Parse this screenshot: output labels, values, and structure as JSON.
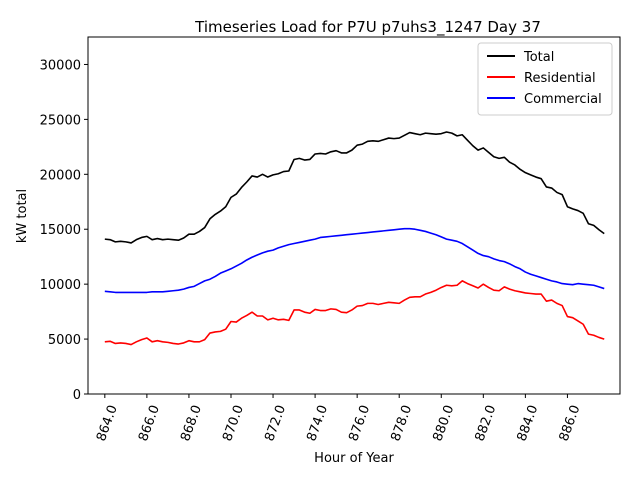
{
  "chart_data": {
    "type": "line",
    "title": "Timeseries Load for P7U p7uhs3_1247  Day 37",
    "xlabel": "Hour of Year",
    "ylabel": "kW total",
    "xlim": [
      863.2,
      888.5
    ],
    "ylim": [
      0,
      32500
    ],
    "x_ticks": [
      864,
      866,
      868,
      870,
      872,
      874,
      876,
      878,
      880,
      882,
      884,
      886
    ],
    "x_tick_labels": [
      "864.0",
      "866.0",
      "868.0",
      "870.0",
      "872.0",
      "874.0",
      "876.0",
      "878.0",
      "880.0",
      "882.0",
      "884.0",
      "886.0"
    ],
    "y_ticks": [
      0,
      5000,
      10000,
      15000,
      20000,
      25000,
      30000
    ],
    "y_tick_labels": [
      "0",
      "5000",
      "10000",
      "15000",
      "20000",
      "25000",
      "30000"
    ],
    "legend_position": "top-right",
    "x_start": 864.0,
    "x_step": 0.25,
    "series": [
      {
        "name": "Total",
        "color": "#000000",
        "values": [
          14100,
          14050,
          13850,
          13900,
          13850,
          13750,
          14050,
          14250,
          14350,
          14050,
          14150,
          14050,
          14100,
          14050,
          14000,
          14200,
          14550,
          14550,
          14800,
          15150,
          15950,
          16350,
          16650,
          17050,
          17900,
          18200,
          18800,
          19300,
          19850,
          19750,
          20000,
          19750,
          19950,
          20050,
          20250,
          20300,
          21350,
          21450,
          21300,
          21350,
          21850,
          21900,
          21850,
          22050,
          22150,
          21950,
          21950,
          22200,
          22650,
          22750,
          23000,
          23050,
          23000,
          23150,
          23300,
          23250,
          23300,
          23550,
          23800,
          23700,
          23600,
          23750,
          23700,
          23650,
          23700,
          23850,
          23750,
          23500,
          23600,
          23100,
          22600,
          22200,
          22400,
          22000,
          21600,
          21450,
          21550,
          21100,
          20850,
          20450,
          20150,
          19950,
          19750,
          19600,
          18850,
          18750,
          18350,
          18150,
          17050,
          16850,
          16700,
          16450,
          15500,
          15350,
          14950,
          14600
        ]
      },
      {
        "name": "Residential",
        "color": "#ff0000",
        "values": [
          4750,
          4800,
          4600,
          4650,
          4600,
          4500,
          4750,
          4950,
          5100,
          4750,
          4850,
          4750,
          4700,
          4600,
          4550,
          4650,
          4850,
          4750,
          4750,
          4950,
          5550,
          5650,
          5700,
          5900,
          6600,
          6550,
          6900,
          7150,
          7450,
          7100,
          7100,
          6750,
          6900,
          6750,
          6800,
          6700,
          7650,
          7650,
          7450,
          7350,
          7700,
          7600,
          7600,
          7750,
          7700,
          7450,
          7400,
          7650,
          8000,
          8050,
          8250,
          8250,
          8150,
          8250,
          8350,
          8300,
          8250,
          8550,
          8800,
          8850,
          8850,
          9100,
          9250,
          9450,
          9700,
          9900,
          9850,
          9900,
          10300,
          10050,
          9850,
          9650,
          10000,
          9700,
          9450,
          9400,
          9750,
          9550,
          9400,
          9300,
          9200,
          9150,
          9100,
          9100,
          8450,
          8550,
          8250,
          8050,
          7050,
          6950,
          6650,
          6350,
          5450,
          5350,
          5150,
          5000
        ]
      },
      {
        "name": "Commercial",
        "color": "#0000ff",
        "values": [
          9350,
          9300,
          9250,
          9250,
          9250,
          9250,
          9250,
          9250,
          9250,
          9300,
          9300,
          9300,
          9350,
          9400,
          9450,
          9550,
          9700,
          9800,
          10050,
          10300,
          10450,
          10700,
          11000,
          11200,
          11400,
          11650,
          11900,
          12200,
          12450,
          12650,
          12850,
          13000,
          13100,
          13300,
          13450,
          13600,
          13700,
          13800,
          13900,
          14000,
          14100,
          14250,
          14300,
          14350,
          14400,
          14450,
          14500,
          14550,
          14600,
          14650,
          14700,
          14750,
          14800,
          14850,
          14900,
          14950,
          15000,
          15050,
          15050,
          15000,
          14900,
          14800,
          14650,
          14500,
          14300,
          14100,
          14000,
          13900,
          13700,
          13400,
          13100,
          12800,
          12600,
          12500,
          12300,
          12150,
          12050,
          11850,
          11600,
          11400,
          11100,
          10900,
          10750,
          10600,
          10450,
          10300,
          10200,
          10050,
          10000,
          9950,
          10050,
          10000,
          9950,
          9900,
          9750,
          9600
        ]
      }
    ]
  }
}
